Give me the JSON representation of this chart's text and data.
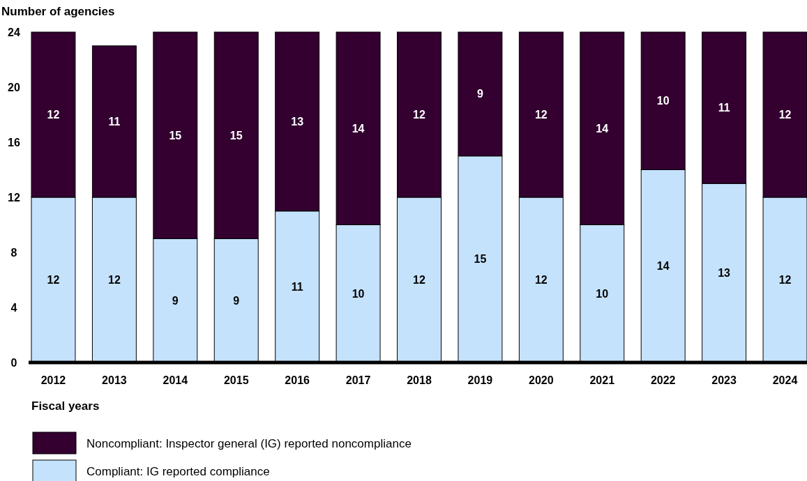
{
  "chart_data": {
    "type": "bar",
    "stacked": true,
    "ylabel": "Number of agencies",
    "xlabel": "Fiscal years",
    "categories": [
      "2012",
      "2013",
      "2014",
      "2015",
      "2016",
      "2017",
      "2018",
      "2019",
      "2020",
      "2021",
      "2022",
      "2023",
      "2024"
    ],
    "series": [
      {
        "name": "Compliant: IG reported compliance",
        "color": "#c5e2fc",
        "values": [
          12,
          12,
          9,
          9,
          11,
          10,
          12,
          15,
          12,
          10,
          14,
          13,
          12
        ]
      },
      {
        "name": "Noncompliant: Inspector general (IG) reported noncompliance",
        "color": "#330030",
        "values": [
          12,
          11,
          15,
          15,
          13,
          14,
          12,
          9,
          12,
          14,
          10,
          11,
          12
        ]
      }
    ],
    "ylim": [
      0,
      24
    ],
    "yticks": [
      0,
      4,
      8,
      12,
      16,
      20,
      24
    ],
    "data_labels": true,
    "grid": false,
    "legend": "bottom left"
  }
}
